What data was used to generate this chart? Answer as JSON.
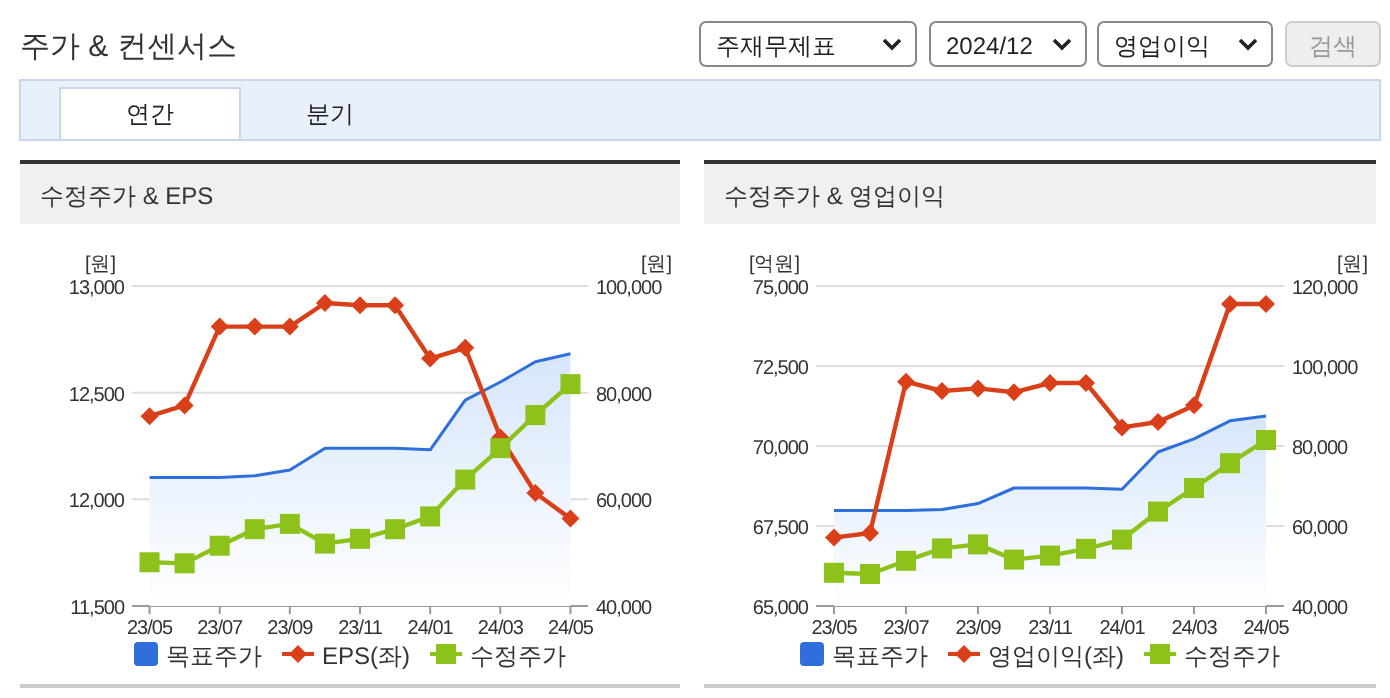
{
  "chart_data": [
    {
      "type": "other",
      "title": "주가 & 컨센서스",
      "annotations": [
        "주재무제표",
        "2024/12",
        "영업이익",
        "검색",
        "연간",
        "분기"
      ]
    },
    {
      "type": "line",
      "title": "수정주가 & EPS",
      "ylabel": "[원]",
      "y2label": "[원]",
      "categories": [
        "23/05",
        null,
        "23/07",
        null,
        "23/09",
        null,
        "23/11",
        null,
        "24/01",
        null,
        "24/03",
        null,
        "24/05"
      ],
      "ylim": [
        11500,
        13000
      ],
      "yticks": [
        {
          "value": 11500,
          "label": "11,500"
        },
        {
          "value": 12000,
          "label": "12,000"
        },
        {
          "value": 12500,
          "label": "12,500"
        },
        {
          "value": 13000,
          "label": "13,000"
        }
      ],
      "y2lim": [
        40000,
        100000
      ],
      "y2ticks": [
        {
          "value": 40000,
          "label": "40,000"
        },
        {
          "value": 60000,
          "label": "60,000"
        },
        {
          "value": 80000,
          "label": "80,000"
        },
        {
          "value": 100000,
          "label": "100,000"
        }
      ],
      "grid": "y",
      "legend": "bottom",
      "series": [
        {
          "name": "목표주가",
          "type": "area",
          "axis": "y2",
          "color": "#2f6fdc",
          "values": [
            64100,
            64100,
            64100,
            64400,
            65500,
            69600,
            69600,
            69600,
            69300,
            78600,
            82000,
            85800,
            87300
          ]
        },
        {
          "name": "EPS(좌)",
          "type": "line",
          "marker": "diamond",
          "color": "#d9401a",
          "values": [
            12390,
            12440,
            12810,
            12810,
            12810,
            12920,
            12910,
            12910,
            12660,
            12710,
            12290,
            12030,
            11910
          ]
        },
        {
          "name": "수정주가",
          "type": "line",
          "axis": "y2",
          "marker": "square",
          "color": "#8cc21a",
          "values": [
            48200,
            48000,
            51300,
            54400,
            55400,
            51700,
            52600,
            54400,
            56800,
            63700,
            69600,
            75800,
            81600
          ]
        }
      ]
    },
    {
      "type": "line",
      "title": "수정주가 & 영업이익",
      "ylabel": "[억원]",
      "y2label": "[원]",
      "categories": [
        "23/05",
        null,
        "23/07",
        null,
        "23/09",
        null,
        "23/11",
        null,
        "24/01",
        null,
        "24/03",
        null,
        "24/05"
      ],
      "ylim": [
        65000,
        75000
      ],
      "yticks": [
        {
          "value": 65000,
          "label": "65,000"
        },
        {
          "value": 67500,
          "label": "67,500"
        },
        {
          "value": 70000,
          "label": "70,000"
        },
        {
          "value": 72500,
          "label": "72,500"
        },
        {
          "value": 75000,
          "label": "75,000"
        }
      ],
      "y2lim": [
        40000,
        120000
      ],
      "y2ticks": [
        {
          "value": 40000,
          "label": "40,000"
        },
        {
          "value": 60000,
          "label": "60,000"
        },
        {
          "value": 80000,
          "label": "80,000"
        },
        {
          "value": 100000,
          "label": "100,000"
        },
        {
          "value": 120000,
          "label": "120,000"
        }
      ],
      "grid": "y",
      "legend": "bottom",
      "series": [
        {
          "name": "목표주가",
          "type": "area",
          "axis": "y2",
          "color": "#2f6fdc",
          "values": [
            63900,
            63900,
            63900,
            64100,
            65600,
            69500,
            69500,
            69500,
            69200,
            78500,
            81800,
            86300,
            87500
          ]
        },
        {
          "name": "영업이익(좌)",
          "type": "line",
          "marker": "diamond",
          "color": "#d9401a",
          "values": [
            67140,
            67280,
            72010,
            71720,
            71800,
            71680,
            71970,
            71970,
            70580,
            70750,
            71270,
            74440,
            74440
          ]
        },
        {
          "name": "수정주가",
          "type": "line",
          "axis": "y2",
          "marker": "square",
          "color": "#8cc21a",
          "values": [
            48300,
            48000,
            51300,
            54400,
            55400,
            51600,
            52600,
            54300,
            56600,
            63600,
            69500,
            75700,
            81500
          ]
        }
      ]
    }
  ]
}
